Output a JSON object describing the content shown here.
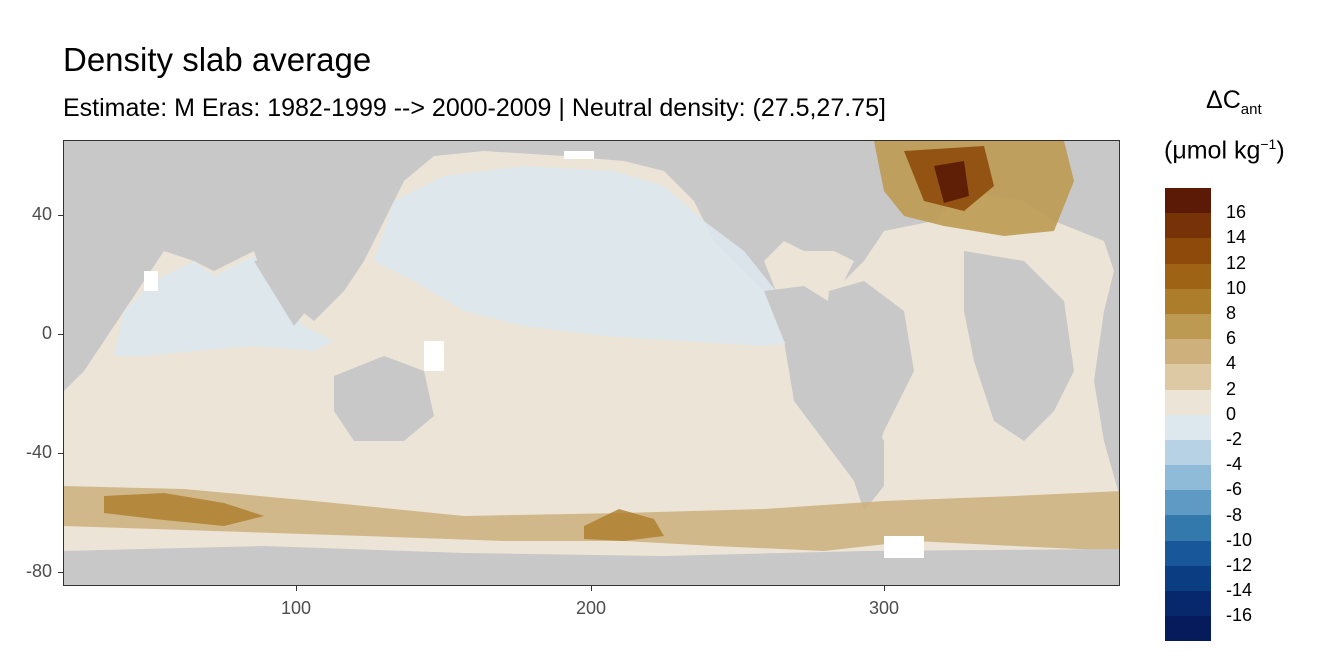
{
  "title": "Density slab average",
  "subtitle": "Estimate: M Eras: 1982-1999 --> 2000-2009 | Neutral density: (27.5,27.75]",
  "legend": {
    "title_main": "ΔC",
    "title_sub": "ant",
    "unit_prefix": "(μmol kg",
    "unit_sup": "−1",
    "unit_suffix": ")",
    "labels": [
      "16",
      "14",
      "12",
      "10",
      "8",
      "6",
      "4",
      "2",
      "0",
      "-2",
      "-4",
      "-6",
      "-8",
      "-10",
      "-12",
      "-14",
      "-16"
    ],
    "colors": [
      "#5a1a05",
      "#783208",
      "#8e4a0b",
      "#9e6314",
      "#ac7d2a",
      "#bd9a52",
      "#cdb07c",
      "#ddcaa5",
      "#ece5d7",
      "#dde7ee",
      "#b7d2e4",
      "#8fbbd8",
      "#5f9ac4",
      "#3479ac",
      "#17579a",
      "#0a3d82",
      "#07286d",
      "#051b5b"
    ]
  },
  "axes": {
    "x_ticks": [
      "100",
      "200",
      "300"
    ],
    "y_ticks": [
      "40",
      "0",
      "-40",
      "-80"
    ]
  },
  "map": {
    "land_color": "#c8c8c8",
    "no_data_color": "#ffffff",
    "ocean_base_color": "#ece5d7"
  }
}
